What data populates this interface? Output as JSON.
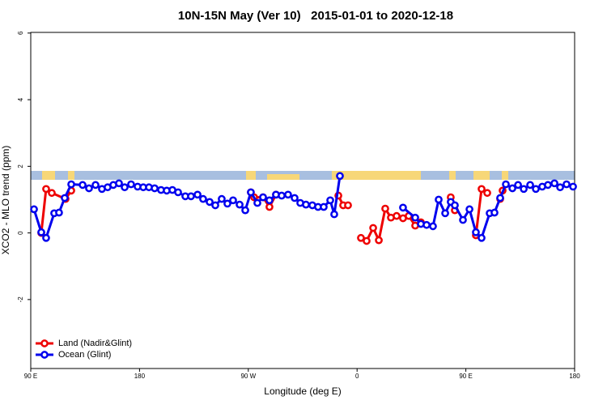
{
  "chart_data": {
    "type": "line",
    "title": "10N-15N May (Ver 10)   2015-01-01 to 2020-12-18",
    "x_label": "Longitude (deg E)",
    "y_label": "XCO2 - MLO trend (ppm)",
    "xlim": [
      90,
      540
    ],
    "xticks": [
      {
        "value": 90,
        "label": "90 E"
      },
      180,
      {
        "value": 270,
        "label": "90 W"
      },
      {
        "value": 360,
        "label": "0"
      },
      {
        "value": 450,
        "label": "90 E"
      },
      {
        "value": 540,
        "label": "180"
      }
    ],
    "ylim": [
      -4.07,
      6.02
    ],
    "yticks": [
      6,
      4,
      2,
      0,
      -2
    ],
    "legend": "bottom-left",
    "series": [
      {
        "name": "Land (Nadir&Glint)",
        "color": "#ee0000",
        "x": [
          98.7,
          102.7,
          107.4,
          118.8,
          123.5,
          null,
          272.1,
          274.8,
          282.2,
          287.5,
          292.9,
          null,
          344.5,
          348.5,
          352.5,
          null,
          363.2,
          367.9,
          373.3,
          378.0,
          383.3,
          388.0,
          392.7,
          398.0,
          402.7,
          408.1,
          412.8,
          null,
          437.5,
          440.9,
          null,
          458.3,
          463.0,
          467.7,
          null,
          478.4,
          480.4
        ],
        "values": [
          0.0,
          1.32,
          1.2,
          1.02,
          1.27,
          null,
          1.22,
          1.07,
          1.07,
          0.78,
          1.15,
          null,
          1.12,
          0.83,
          0.83,
          null,
          -0.15,
          -0.24,
          0.15,
          -0.22,
          0.73,
          0.46,
          0.51,
          0.44,
          0.51,
          0.22,
          0.32,
          null,
          1.07,
          0.68,
          null,
          -0.07,
          1.32,
          1.2,
          null,
          1.02,
          1.27
        ]
      },
      {
        "name": "Ocean (Glint)",
        "color": "#0000ee",
        "x": [
          92.7,
          98.7,
          102.7,
          109.4,
          113.4,
          118.1,
          123.5,
          132.9,
          138.2,
          143.6,
          148.9,
          153.6,
          158.3,
          163.0,
          167.7,
          173.0,
          178.4,
          183.1,
          187.8,
          192.5,
          197.8,
          202.5,
          207.2,
          211.9,
          217.9,
          222.6,
          228.0,
          232.6,
          238.0,
          242.7,
          248.0,
          252.7,
          257.4,
          262.8,
          267.5,
          272.1,
          277.5,
          282.2,
          287.5,
          292.9,
          297.6,
          302.9,
          308.3,
          313.0,
          317.7,
          323.0,
          327.7,
          332.4,
          337.8,
          341.1,
          345.8,
          null,
          398.0,
          408.1,
          412.8,
          417.5,
          422.8,
          427.5,
          432.9,
          437.5,
          440.9,
          447.6,
          453.0,
          458.3,
          463.0,
          469.7,
          473.7,
          478.4,
          483.1,
          488.5,
          493.2,
          497.9,
          503.2,
          507.9,
          513.2,
          517.9,
          523.3,
          528.0,
          533.3,
          538.7
        ],
        "values": [
          0.71,
          0.02,
          -0.15,
          0.59,
          0.61,
          1.05,
          1.46,
          1.44,
          1.34,
          1.44,
          1.32,
          1.37,
          1.44,
          1.49,
          1.37,
          1.46,
          1.39,
          1.37,
          1.37,
          1.34,
          1.29,
          1.27,
          1.29,
          1.22,
          1.1,
          1.1,
          1.15,
          1.02,
          0.93,
          0.83,
          1.02,
          0.88,
          0.98,
          0.85,
          0.68,
          1.22,
          0.9,
          1.07,
          0.98,
          1.15,
          1.12,
          1.15,
          1.05,
          0.9,
          0.85,
          0.83,
          0.78,
          0.78,
          0.98,
          0.56,
          1.71,
          null,
          0.76,
          0.46,
          0.27,
          0.24,
          0.2,
          1.0,
          0.59,
          0.93,
          0.83,
          0.39,
          0.71,
          0.02,
          -0.15,
          0.59,
          0.61,
          1.05,
          1.46,
          1.34,
          1.44,
          1.32,
          1.44,
          1.32,
          1.39,
          1.44,
          1.49,
          1.37,
          1.46,
          1.39
        ]
      }
    ]
  }
}
